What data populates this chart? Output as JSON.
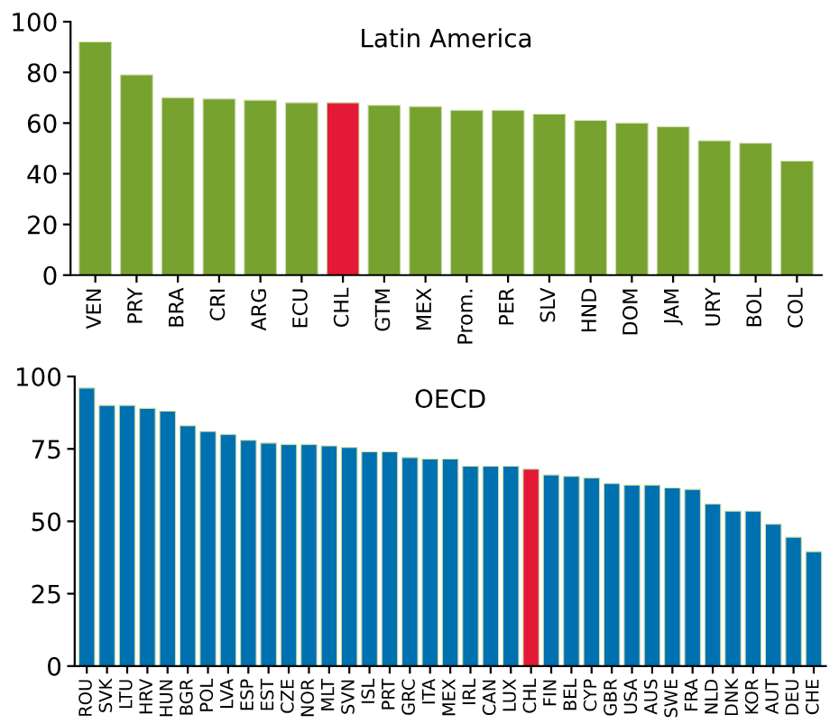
{
  "chart_data": [
    {
      "type": "bar",
      "title": "Latin America",
      "categories": [
        "VEN",
        "PRY",
        "BRA",
        "CRI",
        "ARG",
        "ECU",
        "CHL",
        "GTM",
        "MEX",
        "Prom.",
        "PER",
        "SLV",
        "HND",
        "DOM",
        "JAM",
        "URY",
        "BOL",
        "COL"
      ],
      "values": [
        92,
        79,
        70,
        69.5,
        69,
        68,
        68,
        67,
        66.5,
        65,
        65,
        63.5,
        61,
        60,
        58.5,
        53,
        52,
        45
      ],
      "colors": [
        "#77a22f",
        "#77a22f",
        "#77a22f",
        "#77a22f",
        "#77a22f",
        "#77a22f",
        "#e31937",
        "#77a22f",
        "#77a22f",
        "#77a22f",
        "#77a22f",
        "#77a22f",
        "#77a22f",
        "#77a22f",
        "#77a22f",
        "#77a22f",
        "#77a22f",
        "#77a22f"
      ],
      "ylim": [
        0,
        100
      ],
      "yticks": [
        0,
        20,
        40,
        60,
        80,
        100
      ],
      "grid": false,
      "legend": false
    },
    {
      "type": "bar",
      "title": "OECD",
      "categories": [
        "ROU",
        "SVK",
        "LTU",
        "HRV",
        "HUN",
        "BGR",
        "POL",
        "LVA",
        "ESP",
        "EST",
        "CZE",
        "NOR",
        "MLT",
        "SVN",
        "ISL",
        "PRT",
        "GRC",
        "ITA",
        "MEX",
        "IRL",
        "CAN",
        "LUX",
        "CHL",
        "FIN",
        "BEL",
        "CYP",
        "GBR",
        "USA",
        "AUS",
        "SWE",
        "FRA",
        "NLD",
        "DNK",
        "KOR",
        "AUT",
        "DEU",
        "CHE"
      ],
      "values": [
        96,
        90,
        90,
        89,
        88,
        83,
        81,
        80,
        78,
        77,
        76.5,
        76.5,
        76,
        75.5,
        74,
        74,
        72,
        71.5,
        71.5,
        69,
        69,
        69,
        68,
        66,
        65.5,
        65,
        63,
        62.5,
        62.5,
        61.5,
        61,
        56,
        53.5,
        53.5,
        49,
        44.5,
        39.5
      ],
      "colors": [
        "#0071b0",
        "#0071b0",
        "#0071b0",
        "#0071b0",
        "#0071b0",
        "#0071b0",
        "#0071b0",
        "#0071b0",
        "#0071b0",
        "#0071b0",
        "#0071b0",
        "#0071b0",
        "#0071b0",
        "#0071b0",
        "#0071b0",
        "#0071b0",
        "#0071b0",
        "#0071b0",
        "#0071b0",
        "#0071b0",
        "#0071b0",
        "#0071b0",
        "#e31937",
        "#0071b0",
        "#0071b0",
        "#0071b0",
        "#0071b0",
        "#0071b0",
        "#0071b0",
        "#0071b0",
        "#0071b0",
        "#0071b0",
        "#0071b0",
        "#0071b0",
        "#0071b0",
        "#0071b0",
        "#0071b0"
      ],
      "ylim": [
        0,
        100
      ],
      "yticks": [
        0,
        25,
        50,
        75,
        100
      ],
      "grid": false,
      "legend": false
    }
  ]
}
